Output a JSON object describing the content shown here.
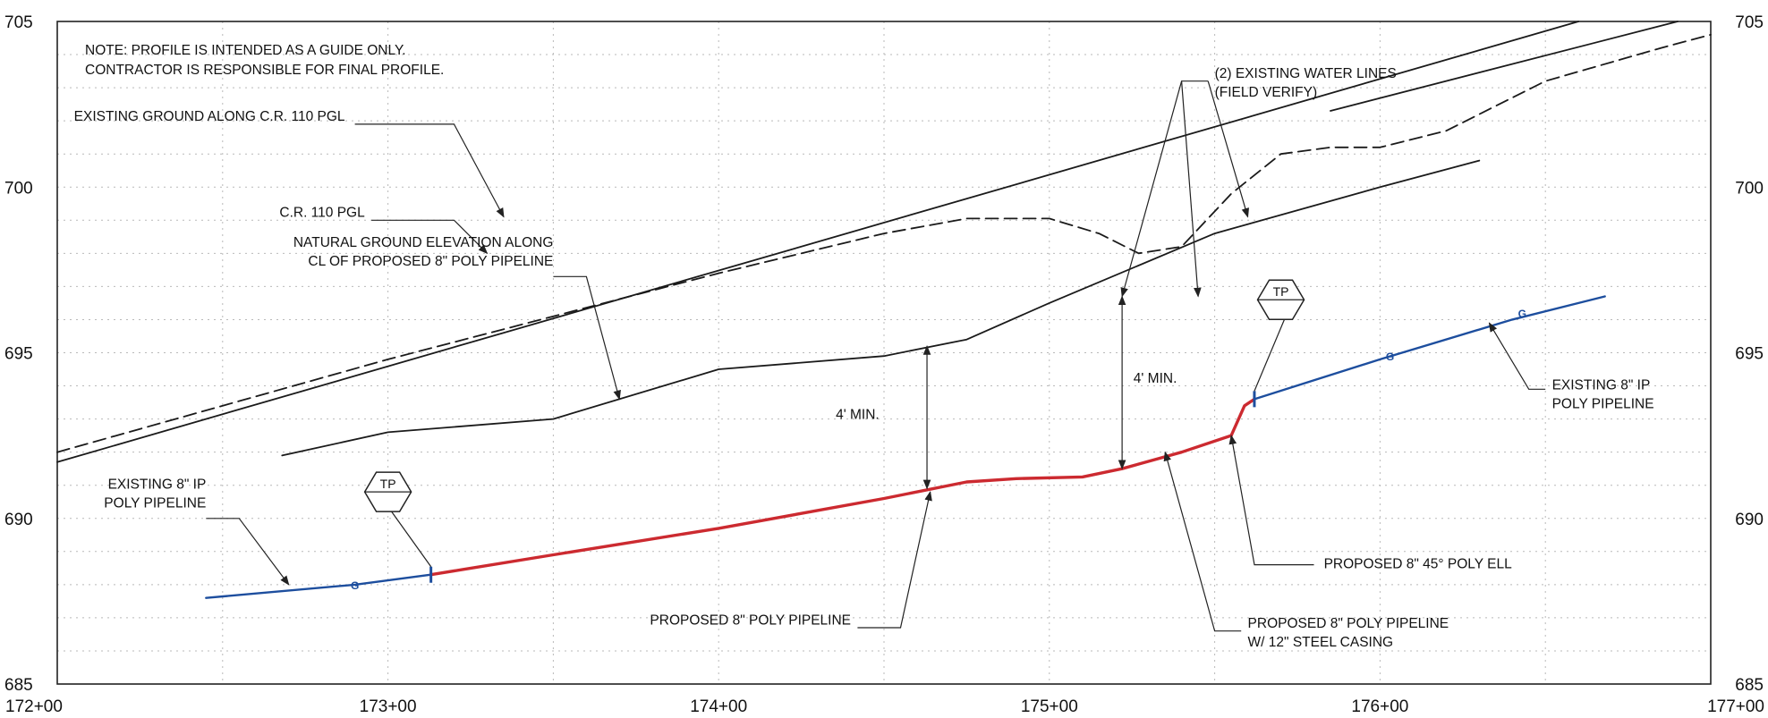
{
  "chart_data": {
    "type": "line",
    "title": "",
    "xlabel": "",
    "ylabel": "",
    "xlim": [
      172,
      177
    ],
    "ylim": [
      685,
      705
    ],
    "grid": true,
    "x_ticks": [
      {
        "value": 172,
        "label": "172+00"
      },
      {
        "value": 173,
        "label": "173+00"
      },
      {
        "value": 174,
        "label": "174+00"
      },
      {
        "value": 175,
        "label": "175+00"
      },
      {
        "value": 176,
        "label": "176+00"
      },
      {
        "value": 177,
        "label": "177+00"
      }
    ],
    "y_ticks": [
      {
        "value": 685,
        "label": "685"
      },
      {
        "value": 690,
        "label": "690"
      },
      {
        "value": 695,
        "label": "695"
      },
      {
        "value": 700,
        "label": "700"
      },
      {
        "value": 705,
        "label": "705"
      }
    ],
    "note": [
      "NOTE: PROFILE IS INTENDED AS A GUIDE ONLY.",
      "CONTRACTOR IS RESPONSIBLE FOR FINAL PROFILE."
    ],
    "series": [
      {
        "key": "cr110-pgl",
        "style": "solid",
        "color": "#1a1a1a",
        "x": [
          172.0,
          176.6
        ],
        "y": [
          691.7,
          705.0
        ]
      },
      {
        "key": "cr110-pgl-upper",
        "style": "solid",
        "color": "#1a1a1a",
        "x": [
          175.85,
          176.9
        ],
        "y": [
          702.3,
          705.0
        ]
      },
      {
        "key": "existing-ground-cr110",
        "style": "dashed",
        "color": "#1a1a1a",
        "x": [
          172.0,
          173.0,
          174.0,
          174.5,
          174.75,
          175.0,
          175.15,
          175.27,
          175.4,
          175.55,
          175.7,
          175.85,
          176.0,
          176.2,
          176.5,
          176.85,
          177.0
        ],
        "y": [
          692.0,
          694.8,
          697.4,
          698.6,
          699.05,
          699.05,
          698.6,
          698.0,
          698.2,
          699.8,
          701.0,
          701.2,
          701.2,
          701.7,
          703.2,
          704.2,
          704.6
        ]
      },
      {
        "key": "natural-ground-pipeline-cl",
        "style": "solid",
        "color": "#1a1a1a",
        "x": [
          172.68,
          173.0,
          173.5,
          174.0,
          174.5,
          174.75,
          175.0,
          175.5,
          176.0,
          176.3
        ],
        "y": [
          691.9,
          692.6,
          693.0,
          694.5,
          694.9,
          695.4,
          696.5,
          698.6,
          700.0,
          700.8
        ]
      },
      {
        "key": "existing-8in-ip-west",
        "style": "solid",
        "color": "#1d4e9e",
        "x": [
          172.45,
          172.9,
          173.13
        ],
        "y": [
          687.6,
          688.0,
          688.3
        ]
      },
      {
        "key": "proposed-8in-poly",
        "style": "solid",
        "color": "#cc2a30",
        "x": [
          173.13,
          173.5,
          174.0,
          174.5,
          174.75,
          174.9,
          175.1,
          175.22,
          175.4,
          175.55
        ],
        "y": [
          688.3,
          688.9,
          689.7,
          690.6,
          691.1,
          691.2,
          691.25,
          691.5,
          692.0,
          692.5
        ]
      },
      {
        "key": "proposed-45-poly-ell",
        "style": "solid",
        "color": "#cc2a30",
        "x": [
          175.55,
          175.59,
          175.62
        ],
        "y": [
          692.5,
          693.4,
          693.6
        ]
      },
      {
        "key": "existing-8in-ip-east",
        "style": "solid",
        "color": "#1d4e9e",
        "x": [
          175.62,
          176.0,
          176.4,
          176.68
        ],
        "y": [
          693.6,
          694.8,
          696.0,
          696.7
        ]
      }
    ],
    "markers": {
      "tp_label": "TP",
      "tp": [
        {
          "x": 173.13,
          "y": 688.3,
          "label_x": 173.0,
          "label_y": 690.8
        },
        {
          "x": 175.62,
          "y": 693.6,
          "label_x": 175.7,
          "label_y": 696.6
        }
      ],
      "g_label": "G",
      "g": [
        {
          "x": 172.9,
          "y": 688.0
        },
        {
          "x": 176.03,
          "y": 694.9
        },
        {
          "x": 176.43,
          "y": 696.2
        }
      ]
    },
    "dimensions": [
      {
        "label": "4' MIN.",
        "x": 174.63,
        "y_bottom": 690.9,
        "y_top": 695.2,
        "label_x": 174.42,
        "label_y": 693.0
      },
      {
        "label": "4' MIN.",
        "x": 175.22,
        "y_bottom": 691.5,
        "y_top": 696.7,
        "label_x": 175.32,
        "label_y": 694.1
      }
    ],
    "callouts": [
      {
        "key": "cr110-pgl-callout",
        "lines": [
          "C.R. 110 PGL"
        ],
        "anchor": "end",
        "text_x": 172.93,
        "text_y": 699.1,
        "leader": [
          [
            172.95,
            699.0
          ],
          [
            173.2,
            699.0
          ],
          [
            173.3,
            698.0
          ]
        ],
        "arrow": true
      },
      {
        "key": "existing-ground-callout",
        "lines": [
          "EXISTING GROUND ALONG C.R. 110 PGL"
        ],
        "anchor": "end",
        "text_x": 172.87,
        "text_y": 702.0,
        "leader": [
          [
            172.9,
            701.9
          ],
          [
            173.2,
            701.9
          ],
          [
            173.35,
            699.1
          ]
        ],
        "arrow": true
      },
      {
        "key": "natural-ground-callout",
        "lines": [
          "NATURAL GROUND ELEVATION ALONG",
          "CL OF PROPOSED 8\" POLY PIPELINE"
        ],
        "anchor": "end",
        "text_x": 173.5,
        "text_y": 698.2,
        "leader": [
          [
            173.5,
            697.3
          ],
          [
            173.6,
            697.3
          ],
          [
            173.7,
            693.6
          ]
        ],
        "arrow": true
      },
      {
        "key": "water-lines-callout",
        "lines": [
          "(2) EXISTING WATER LINES",
          "(FIELD VERIFY)"
        ],
        "anchor": "start",
        "text_x": 175.5,
        "text_y": 703.3,
        "leader": [
          [
            175.48,
            703.2
          ],
          [
            175.4,
            703.2
          ],
          [
            175.22,
            696.7
          ]
        ],
        "leader2": [
          [
            175.4,
            703.2
          ],
          [
            175.45,
            696.7
          ]
        ],
        "leader3": [
          [
            175.48,
            703.2
          ],
          [
            175.6,
            699.1
          ]
        ],
        "arrow": true
      },
      {
        "key": "existing-ip-west-callout",
        "lines": [
          "EXISTING 8\" IP",
          "POLY PIPELINE"
        ],
        "anchor": "end",
        "text_x": 172.45,
        "text_y": 690.9,
        "leader": [
          [
            172.45,
            690.0
          ],
          [
            172.55,
            690.0
          ],
          [
            172.7,
            688.0
          ]
        ],
        "arrow": true
      },
      {
        "key": "proposed-pipeline-callout",
        "lines": [
          "PROPOSED 8\" POLY PIPELINE"
        ],
        "anchor": "end",
        "text_x": 174.4,
        "text_y": 686.8,
        "leader": [
          [
            174.42,
            686.7
          ],
          [
            174.55,
            686.7
          ],
          [
            174.64,
            690.8
          ]
        ],
        "arrow": true
      },
      {
        "key": "steel-casing-callout",
        "lines": [
          "PROPOSED 8\" POLY PIPELINE",
          "W/ 12\" STEEL CASING"
        ],
        "anchor": "start",
        "text_x": 175.6,
        "text_y": 686.7,
        "leader": [
          [
            175.58,
            686.6
          ],
          [
            175.5,
            686.6
          ],
          [
            175.35,
            692.0
          ]
        ],
        "arrow": true
      },
      {
        "key": "ell-callout",
        "lines": [
          "PROPOSED 8\" 45° POLY ELL"
        ],
        "anchor": "start",
        "text_x": 175.83,
        "text_y": 688.5,
        "leader": [
          [
            175.8,
            688.6
          ],
          [
            175.62,
            688.6
          ],
          [
            175.55,
            692.5
          ]
        ],
        "arrow": true
      },
      {
        "key": "existing-ip-east-callout",
        "lines": [
          "EXISTING 8\" IP",
          "POLY PIPELINE"
        ],
        "anchor": "start",
        "text_x": 176.52,
        "text_y": 693.9,
        "leader": [
          [
            176.5,
            693.9
          ],
          [
            176.45,
            693.9
          ],
          [
            176.33,
            695.9
          ]
        ],
        "arrow": true
      }
    ]
  }
}
